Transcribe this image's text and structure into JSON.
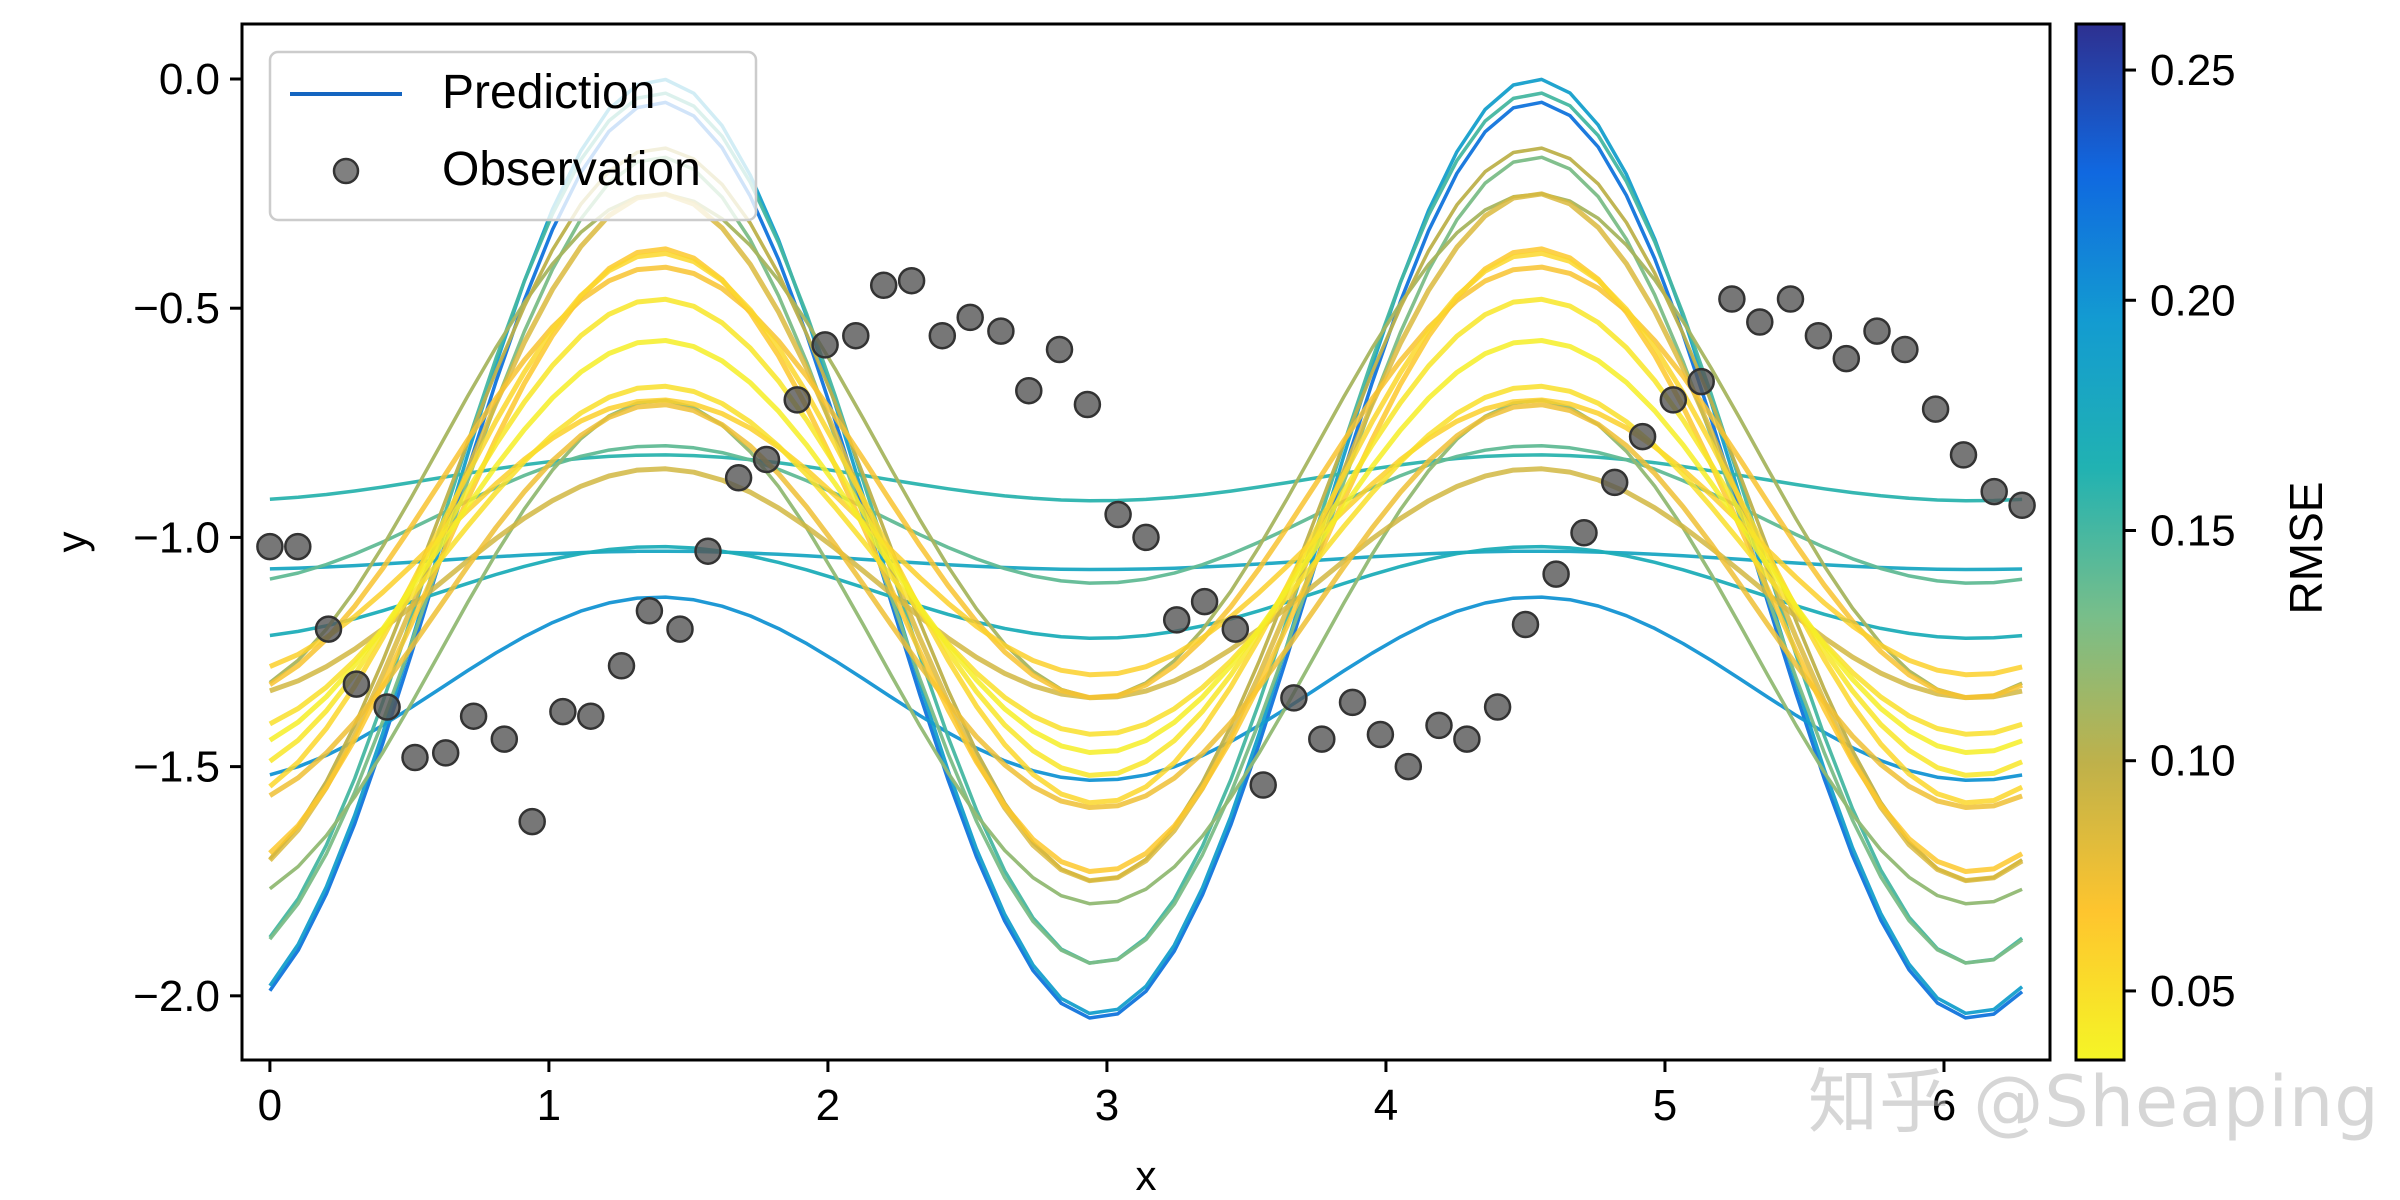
{
  "chart_data": {
    "type": "line",
    "xlabel": "x",
    "ylabel": "y",
    "xlim": [
      -0.1,
      6.38
    ],
    "ylim": [
      -2.14,
      0.12
    ],
    "xticks": [
      0,
      1,
      2,
      3,
      4,
      5,
      6
    ],
    "xtick_labels": [
      "0",
      "1",
      "2",
      "3",
      "4",
      "5",
      "6"
    ],
    "yticks": [
      0.0,
      -0.5,
      -1.0,
      -1.5,
      -2.0
    ],
    "ytick_labels": [
      "0.0",
      "−0.5",
      "−1.0",
      "−1.5",
      "−2.0"
    ],
    "legend": {
      "location": "upper-left",
      "entries": [
        {
          "label": "Prediction",
          "marker": "line",
          "color": "#1565c0"
        },
        {
          "label": "Observation",
          "marker": "circle",
          "color": "#555555"
        }
      ]
    },
    "colorbar": {
      "label": "RMSE",
      "range": [
        0.035,
        0.26
      ],
      "ticks": [
        0.05,
        0.1,
        0.15,
        0.2,
        0.25
      ],
      "tick_labels": [
        "0.05",
        "0.10",
        "0.15",
        "0.20",
        "0.25"
      ],
      "colormap": [
        "#f5f526",
        "#fec52e",
        "#bfb14a",
        "#78be8a",
        "#21b2b2",
        "#139bd1",
        "#1068e0",
        "#2e3090"
      ]
    },
    "observations": {
      "name": "Observation",
      "x": [
        0.0,
        0.1,
        0.21,
        0.31,
        0.42,
        0.52,
        0.63,
        0.73,
        0.84,
        0.94,
        1.05,
        1.15,
        1.26,
        1.36,
        1.47,
        1.57,
        1.68,
        1.78,
        1.89,
        1.99,
        2.1,
        2.2,
        2.3,
        2.41,
        2.51,
        2.62,
        2.72,
        2.83,
        2.93,
        3.04,
        3.14,
        3.25,
        3.35,
        3.46,
        3.56,
        3.67,
        3.77,
        3.88,
        3.98,
        4.08,
        4.19,
        4.29,
        4.4,
        4.5,
        4.61,
        4.71,
        4.82,
        4.92,
        5.03,
        5.13,
        5.24,
        5.34,
        5.45,
        5.55,
        5.65,
        5.76,
        5.86,
        5.97,
        6.07,
        6.18,
        6.28
      ],
      "y": [
        -1.02,
        -1.02,
        -1.2,
        -1.32,
        -1.37,
        -1.48,
        -1.47,
        -1.39,
        -1.44,
        -1.62,
        -1.38,
        -1.39,
        -1.28,
        -1.16,
        -1.2,
        -1.03,
        -0.87,
        -0.83,
        -0.7,
        -0.58,
        -0.56,
        -0.45,
        -0.44,
        -0.56,
        -0.52,
        -0.55,
        -0.68,
        -0.59,
        -0.71,
        -0.95,
        -1.0,
        -1.18,
        -1.14,
        -1.2,
        -1.54,
        -1.35,
        -1.44,
        -1.36,
        -1.43,
        -1.5,
        -1.41,
        -1.44,
        -1.37,
        -1.19,
        -1.08,
        -0.99,
        -0.88,
        -0.78,
        -0.7,
        -0.66,
        -0.48,
        -0.53,
        -0.48,
        -0.56,
        -0.61,
        -0.55,
        -0.59,
        -0.72,
        -0.82,
        -0.9,
        -0.93
      ]
    },
    "predictions": {
      "name": "Prediction",
      "description_model": "y = offset + amplitude * sin(2x - 1.22)",
      "curves": [
        {
          "amplitude": 0.45,
          "offset": -1.02,
          "rmse": 0.04
        },
        {
          "amplitude": 0.52,
          "offset": -1.0,
          "rmse": 0.045
        },
        {
          "amplitude": 0.38,
          "offset": -1.05,
          "rmse": 0.05
        },
        {
          "amplitude": 0.6,
          "offset": -0.98,
          "rmse": 0.055
        },
        {
          "amplitude": 0.3,
          "offset": -1.0,
          "rmse": 0.06
        },
        {
          "amplitude": 0.68,
          "offset": -1.05,
          "rmse": 0.065
        },
        {
          "amplitude": 0.47,
          "offset": -0.88,
          "rmse": 0.07
        },
        {
          "amplitude": 0.44,
          "offset": -1.15,
          "rmse": 0.075
        },
        {
          "amplitude": 0.75,
          "offset": -1.0,
          "rmse": 0.085
        },
        {
          "amplitude": 0.25,
          "offset": -1.1,
          "rmse": 0.09
        },
        {
          "amplitude": 0.8,
          "offset": -0.95,
          "rmse": 0.1
        },
        {
          "amplitude": 0.55,
          "offset": -0.8,
          "rmse": 0.11
        },
        {
          "amplitude": 0.55,
          "offset": -1.25,
          "rmse": 0.12
        },
        {
          "amplitude": 0.88,
          "offset": -1.05,
          "rmse": 0.13
        },
        {
          "amplitude": 0.15,
          "offset": -0.95,
          "rmse": 0.14
        },
        {
          "amplitude": 0.95,
          "offset": -0.98,
          "rmse": 0.15
        },
        {
          "amplitude": 0.05,
          "offset": -0.87,
          "rmse": 0.16
        },
        {
          "amplitude": 0.1,
          "offset": -1.12,
          "rmse": 0.17
        },
        {
          "amplitude": 0.02,
          "offset": -1.05,
          "rmse": 0.18
        },
        {
          "amplitude": 1.02,
          "offset": -1.02,
          "rmse": 0.19
        },
        {
          "amplitude": 0.2,
          "offset": -1.33,
          "rmse": 0.2
        },
        {
          "amplitude": 1.0,
          "offset": -1.05,
          "rmse": 0.22
        }
      ]
    }
  },
  "watermark": "知乎 @Sheaping"
}
